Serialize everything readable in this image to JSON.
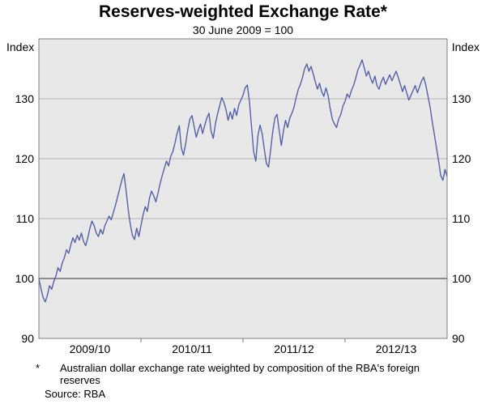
{
  "header": {
    "title": "Reserves-weighted Exchange Rate*",
    "subtitle": "30 June 2009 = 100"
  },
  "axes": {
    "unit_left": "Index",
    "unit_right": "Index"
  },
  "footnote": {
    "marker": "*",
    "text": "Australian dollar exchange rate weighted by composition of the RBA's foreign reserves"
  },
  "source": "Source: RBA",
  "colors": {
    "line": "#5560a8",
    "panel": "#e8e8e8",
    "grid": "#b5b5b5",
    "reference_line": "#333333",
    "frame": "#7f7f7f"
  },
  "chart_data": {
    "type": "line",
    "title": "Reserves-weighted Exchange Rate*",
    "subtitle": "30 June 2009 = 100",
    "ylabel": "Index",
    "ylim": [
      90,
      140
    ],
    "y_ticks": [
      90,
      100,
      110,
      120,
      130
    ],
    "reference_line": 100,
    "grid": "horizontal",
    "legend": "none",
    "x_unit": "months since July 2009",
    "x_range": [
      0,
      48
    ],
    "x_tick_labels": [
      {
        "label": "2009/10",
        "x": 6
      },
      {
        "label": "2010/11",
        "x": 18
      },
      {
        "label": "2011/12",
        "x": 30
      },
      {
        "label": "2012/13",
        "x": 42
      }
    ],
    "x_boundary_ticks": [
      12,
      24,
      36
    ],
    "series": [
      {
        "name": "Reserves-weighted exchange rate (30 June 2009 = 100)",
        "color": "#5560a8",
        "x_start": 0,
        "x_step": 0.25,
        "values": [
          100.0,
          98.3,
          96.8,
          96.1,
          97.2,
          98.8,
          98.2,
          99.5,
          100.4,
          101.8,
          101.2,
          102.6,
          103.5,
          104.8,
          104.2,
          105.6,
          106.8,
          106.0,
          107.2,
          106.4,
          107.6,
          106.2,
          105.5,
          106.8,
          108.4,
          109.6,
          108.8,
          107.6,
          107.0,
          108.2,
          107.4,
          108.8,
          109.6,
          110.4,
          109.8,
          111.0,
          112.2,
          113.6,
          115.0,
          116.4,
          117.5,
          114.8,
          111.5,
          109.0,
          107.2,
          106.5,
          108.4,
          107.0,
          108.8,
          110.6,
          112.0,
          111.2,
          113.4,
          114.6,
          113.8,
          112.8,
          114.2,
          115.8,
          117.2,
          118.4,
          119.6,
          118.8,
          120.4,
          121.2,
          122.6,
          124.2,
          125.5,
          121.8,
          120.6,
          122.4,
          124.8,
          126.6,
          127.2,
          125.4,
          123.6,
          124.8,
          125.8,
          124.2,
          125.6,
          126.8,
          127.6,
          124.6,
          123.4,
          125.8,
          127.4,
          128.8,
          130.2,
          129.4,
          128.2,
          126.4,
          127.8,
          126.6,
          128.4,
          127.2,
          129.0,
          129.8,
          130.6,
          131.8,
          132.3,
          129.6,
          125.4,
          121.2,
          119.6,
          123.8,
          125.6,
          124.2,
          121.6,
          119.2,
          118.6,
          121.4,
          124.6,
          126.8,
          127.4,
          124.8,
          122.2,
          124.6,
          126.4,
          125.2,
          126.8,
          127.6,
          128.6,
          130.2,
          131.6,
          132.4,
          133.6,
          135.0,
          135.8,
          134.6,
          135.4,
          134.2,
          132.8,
          131.6,
          132.6,
          131.2,
          130.4,
          131.8,
          130.6,
          128.4,
          126.6,
          125.8,
          125.2,
          126.6,
          127.4,
          128.8,
          129.6,
          130.8,
          130.2,
          131.4,
          132.2,
          133.4,
          134.8,
          135.6,
          136.5,
          135.2,
          133.8,
          134.6,
          133.4,
          132.6,
          133.8,
          132.2,
          131.6,
          132.8,
          133.6,
          132.4,
          133.2,
          134.0,
          133.0,
          133.8,
          134.6,
          133.6,
          132.4,
          131.2,
          132.2,
          131.0,
          129.8,
          130.6,
          131.4,
          132.2,
          131.0,
          132.0,
          133.0,
          133.6,
          132.2,
          130.4,
          128.6,
          126.2,
          124.0,
          121.8,
          119.6,
          117.2,
          116.4,
          118.2,
          117.0
        ]
      }
    ]
  }
}
